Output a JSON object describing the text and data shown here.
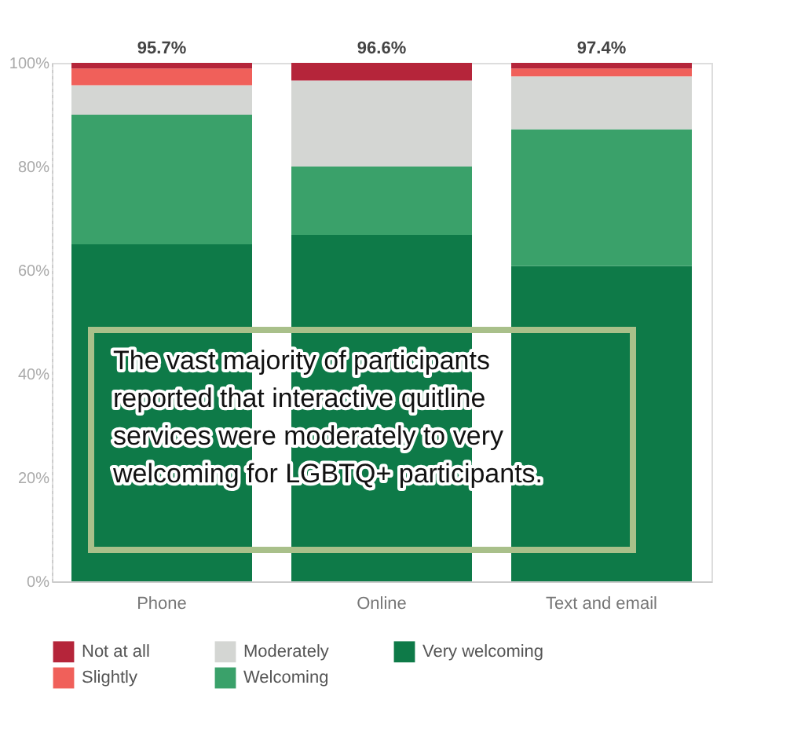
{
  "chart_data": {
    "type": "bar",
    "stacked": true,
    "categories": [
      "Phone",
      "Online",
      "Text and email"
    ],
    "series": [
      {
        "name": "Very welcoming",
        "color": "#0e7a48",
        "values": [
          65.0,
          66.8,
          60.8
        ]
      },
      {
        "name": "Welcoming",
        "color": "#3aa16a",
        "values": [
          25.0,
          13.2,
          26.4
        ]
      },
      {
        "name": "Moderately",
        "color": "#d4d6d3",
        "values": [
          5.7,
          16.6,
          10.2
        ]
      },
      {
        "name": "Slightly",
        "color": "#f0605a",
        "values": [
          3.2,
          0,
          1.5
        ]
      },
      {
        "name": "Not at all",
        "color": "#b5253a",
        "values": [
          1.1,
          3.4,
          1.1
        ]
      }
    ],
    "ylim": [
      0,
      100
    ],
    "yticks": [
      {
        "value": 0,
        "label": "0%"
      },
      {
        "value": 20,
        "label": "20%"
      },
      {
        "value": 40,
        "label": "40%"
      },
      {
        "value": 60,
        "label": "60%"
      },
      {
        "value": 80,
        "label": "80%"
      },
      {
        "value": 100,
        "label": "100%"
      }
    ],
    "grid": false,
    "legend": "bottom",
    "annotations": [
      {
        "text": "95.7%",
        "x": "Phone",
        "y": 100
      },
      {
        "text": "96.6%",
        "x": "Online",
        "y": 100
      },
      {
        "text": "97.4%",
        "x": "Text and email",
        "y": 100
      },
      "The vast majority of participants reported that interactive quitline services were moderately to very welcoming for LGBTQ+ participants."
    ]
  }
}
